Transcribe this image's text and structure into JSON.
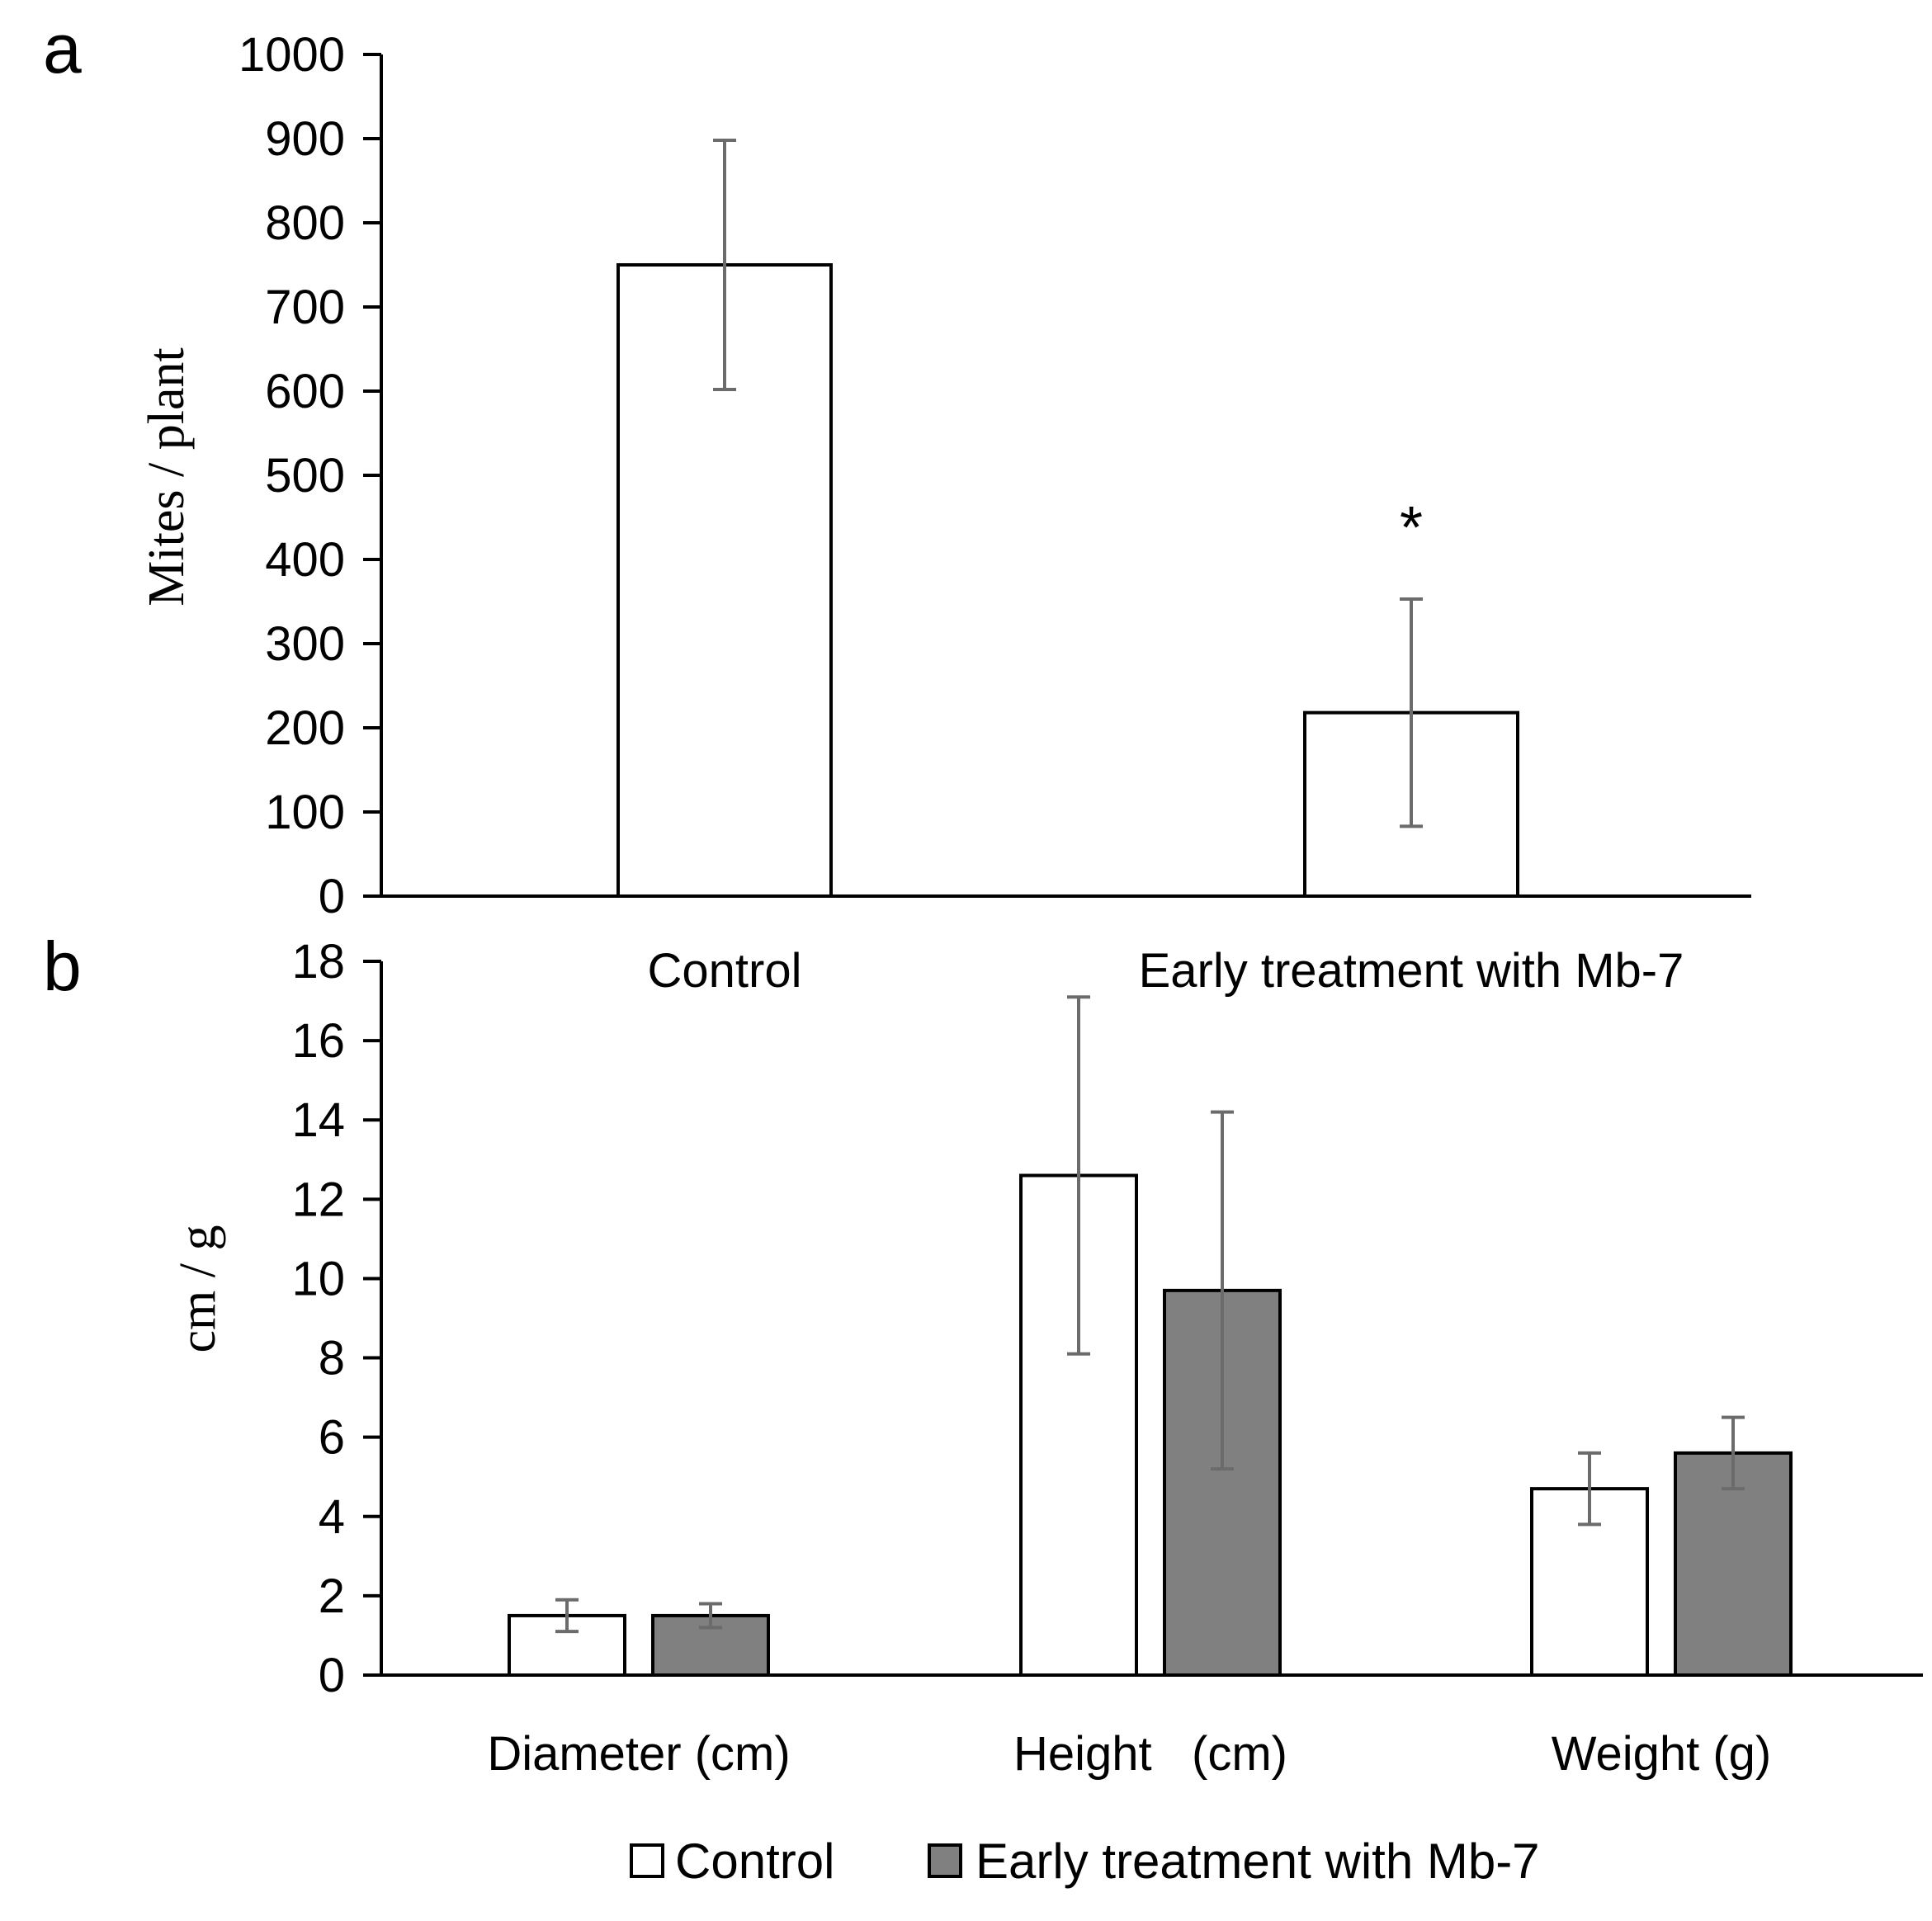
{
  "chart_data": [
    {
      "panel": "a",
      "type": "bar",
      "ylabel": "Mites / plant",
      "ylim": [
        0,
        1000
      ],
      "yticks": [
        0,
        100,
        200,
        300,
        400,
        500,
        600,
        700,
        800,
        900,
        1000
      ],
      "categories": [
        "Control",
        "Early treatment with Mb-7"
      ],
      "values": [
        750,
        218
      ],
      "errors": [
        148,
        135
      ],
      "annotations": [
        {
          "category": "Early treatment with Mb-7",
          "text": "*"
        }
      ]
    },
    {
      "panel": "b",
      "type": "bar",
      "ylabel": "cm / g",
      "ylim": [
        0,
        18
      ],
      "yticks": [
        0,
        2,
        4,
        6,
        8,
        10,
        12,
        14,
        16,
        18
      ],
      "categories": [
        "Diameter (cm)",
        "Height   (cm)",
        "Weight (g)"
      ],
      "series": [
        {
          "name": "Control",
          "values": [
            1.5,
            12.6,
            4.7
          ],
          "errors": [
            0.4,
            4.5,
            0.9
          ],
          "color": "#ffffff"
        },
        {
          "name": "Early treatment with Mb-7",
          "values": [
            1.5,
            9.7,
            5.6
          ],
          "errors": [
            0.3,
            4.5,
            0.9
          ],
          "color": "#808080"
        }
      ],
      "legend": "bottom"
    }
  ]
}
